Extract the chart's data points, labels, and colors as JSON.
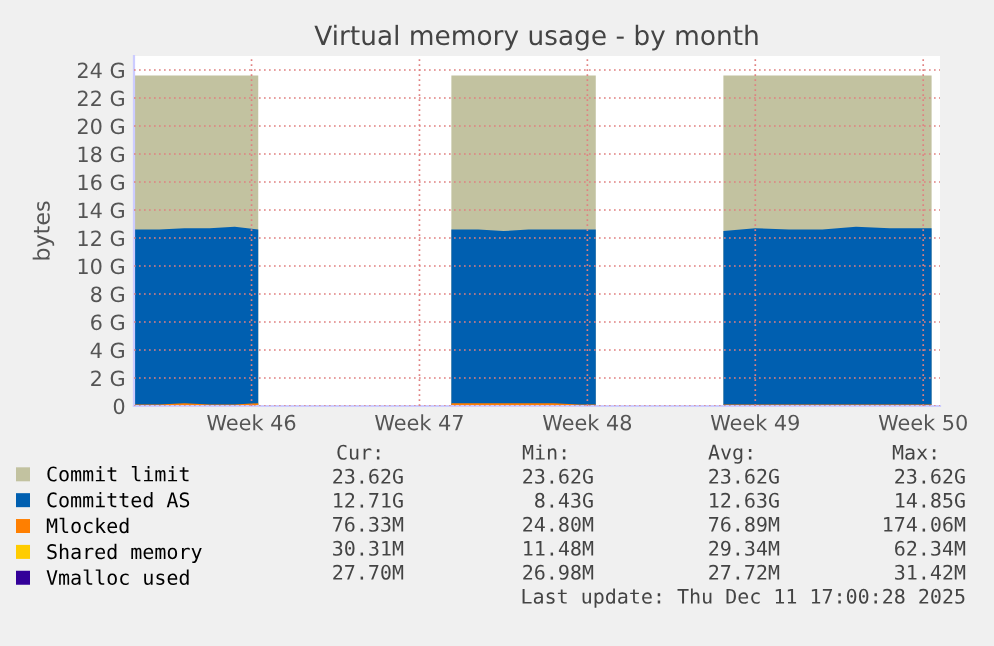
{
  "chart_data": {
    "type": "area",
    "title": "Virtual memory usage - by month",
    "ylabel": "bytes",
    "x": [
      "2025-11-05T02:24",
      "2025-11-06T03:36",
      "2025-11-07T04:48",
      "2025-11-08T06:00",
      "2025-11-09T07:12",
      "2025-11-10T06:43",
      "2025-11-10T16:48",
      "2025-11-18T07:55",
      "2025-11-19T10:48",
      "2025-11-20T12:00",
      "2025-11-21T13:12",
      "2025-11-22T14:24",
      "2025-11-23T15:36",
      "2025-11-24T08:24",
      "2025-11-24T16:48",
      "2025-11-29T16:05",
      "2025-12-01T00:00",
      "2025-12-02T09:36",
      "2025-12-03T19:12",
      "2025-12-05T04:48",
      "2025-12-06T14:24",
      "2025-12-08T08:24"
    ],
    "series": [
      {
        "name": "Commit limit",
        "color": "#c2c2a0",
        "values": [
          23.6,
          23.6,
          23.6,
          23.6,
          23.6,
          23.6,
          null,
          23.6,
          23.6,
          23.6,
          23.6,
          23.6,
          23.6,
          23.6,
          null,
          23.6,
          23.6,
          23.6,
          23.6,
          23.6,
          23.6,
          23.6
        ]
      },
      {
        "name": "Committed AS",
        "color": "#005fb0",
        "values": [
          12.6,
          12.6,
          12.7,
          12.7,
          12.8,
          12.6,
          null,
          12.6,
          12.6,
          12.5,
          12.6,
          12.6,
          12.6,
          12.6,
          null,
          12.5,
          12.7,
          12.6,
          12.6,
          12.8,
          12.7,
          12.7
        ]
      },
      {
        "name": "Mlocked",
        "color": "#ff7f00",
        "values": [
          0.1,
          0.1,
          0.2,
          0.1,
          0.1,
          0.2,
          null,
          0.2,
          0.2,
          0.2,
          0.2,
          0.2,
          0.1,
          0.1,
          null,
          0.1,
          0.1,
          0.1,
          0.1,
          0.1,
          0.1,
          0.1
        ]
      },
      {
        "name": "Shared memory",
        "type": "line",
        "color": "#ffcc00",
        "values": [
          null,
          null,
          null,
          null,
          null,
          null,
          null,
          null,
          null,
          null,
          null,
          null,
          null,
          null,
          null,
          null,
          null,
          null,
          null,
          null,
          null,
          null
        ]
      },
      {
        "name": "Vmalloc used",
        "type": "line",
        "color": "#330099",
        "values": [
          null,
          null,
          null,
          null,
          null,
          null,
          null,
          null,
          null,
          null,
          null,
          null,
          null,
          null,
          null,
          null,
          null,
          null,
          null,
          null,
          null,
          null
        ]
      }
    ],
    "xlim": [
      "2025-11-05T02:24",
      "2025-12-08T16:48"
    ],
    "xticks": [
      {
        "value": "2025-11-10",
        "label": "Week 46"
      },
      {
        "value": "2025-11-17",
        "label": "Week 47"
      },
      {
        "value": "2025-11-24",
        "label": "Week 48"
      },
      {
        "value": "2025-12-01",
        "label": "Week 49"
      },
      {
        "value": "2025-12-08",
        "label": "Week 50"
      }
    ],
    "ylim": [
      0,
      25
    ],
    "yticks": [
      {
        "value": 0,
        "label": "0"
      },
      {
        "value": 2,
        "label": "2 G"
      },
      {
        "value": 4,
        "label": "4 G"
      },
      {
        "value": 6,
        "label": "6 G"
      },
      {
        "value": 8,
        "label": "8 G"
      },
      {
        "value": 10,
        "label": "10 G"
      },
      {
        "value": 12,
        "label": "12 G"
      },
      {
        "value": 14,
        "label": "14 G"
      },
      {
        "value": 16,
        "label": "16 G"
      },
      {
        "value": 18,
        "label": "18 G"
      },
      {
        "value": 20,
        "label": "20 G"
      },
      {
        "value": 22,
        "label": "22 G"
      },
      {
        "value": 24,
        "label": "24 G"
      }
    ],
    "grid": true,
    "legend": "bottom",
    "annotations": [
      "Cur:",
      "Min:",
      "Avg:",
      "Max:",
      "23.62G",
      "23.62G",
      "23.62G",
      "23.62G",
      "12.71G",
      "8.43G",
      "12.63G",
      "14.85G",
      "76.33M",
      "24.80M",
      "76.89M",
      "174.06M",
      "30.31M",
      "11.48M",
      "29.34M",
      "62.34M",
      "27.70M",
      "26.98M",
      "27.72M",
      "31.42M",
      "Last update: Thu Dec 11 17:00:28 2025"
    ]
  }
}
